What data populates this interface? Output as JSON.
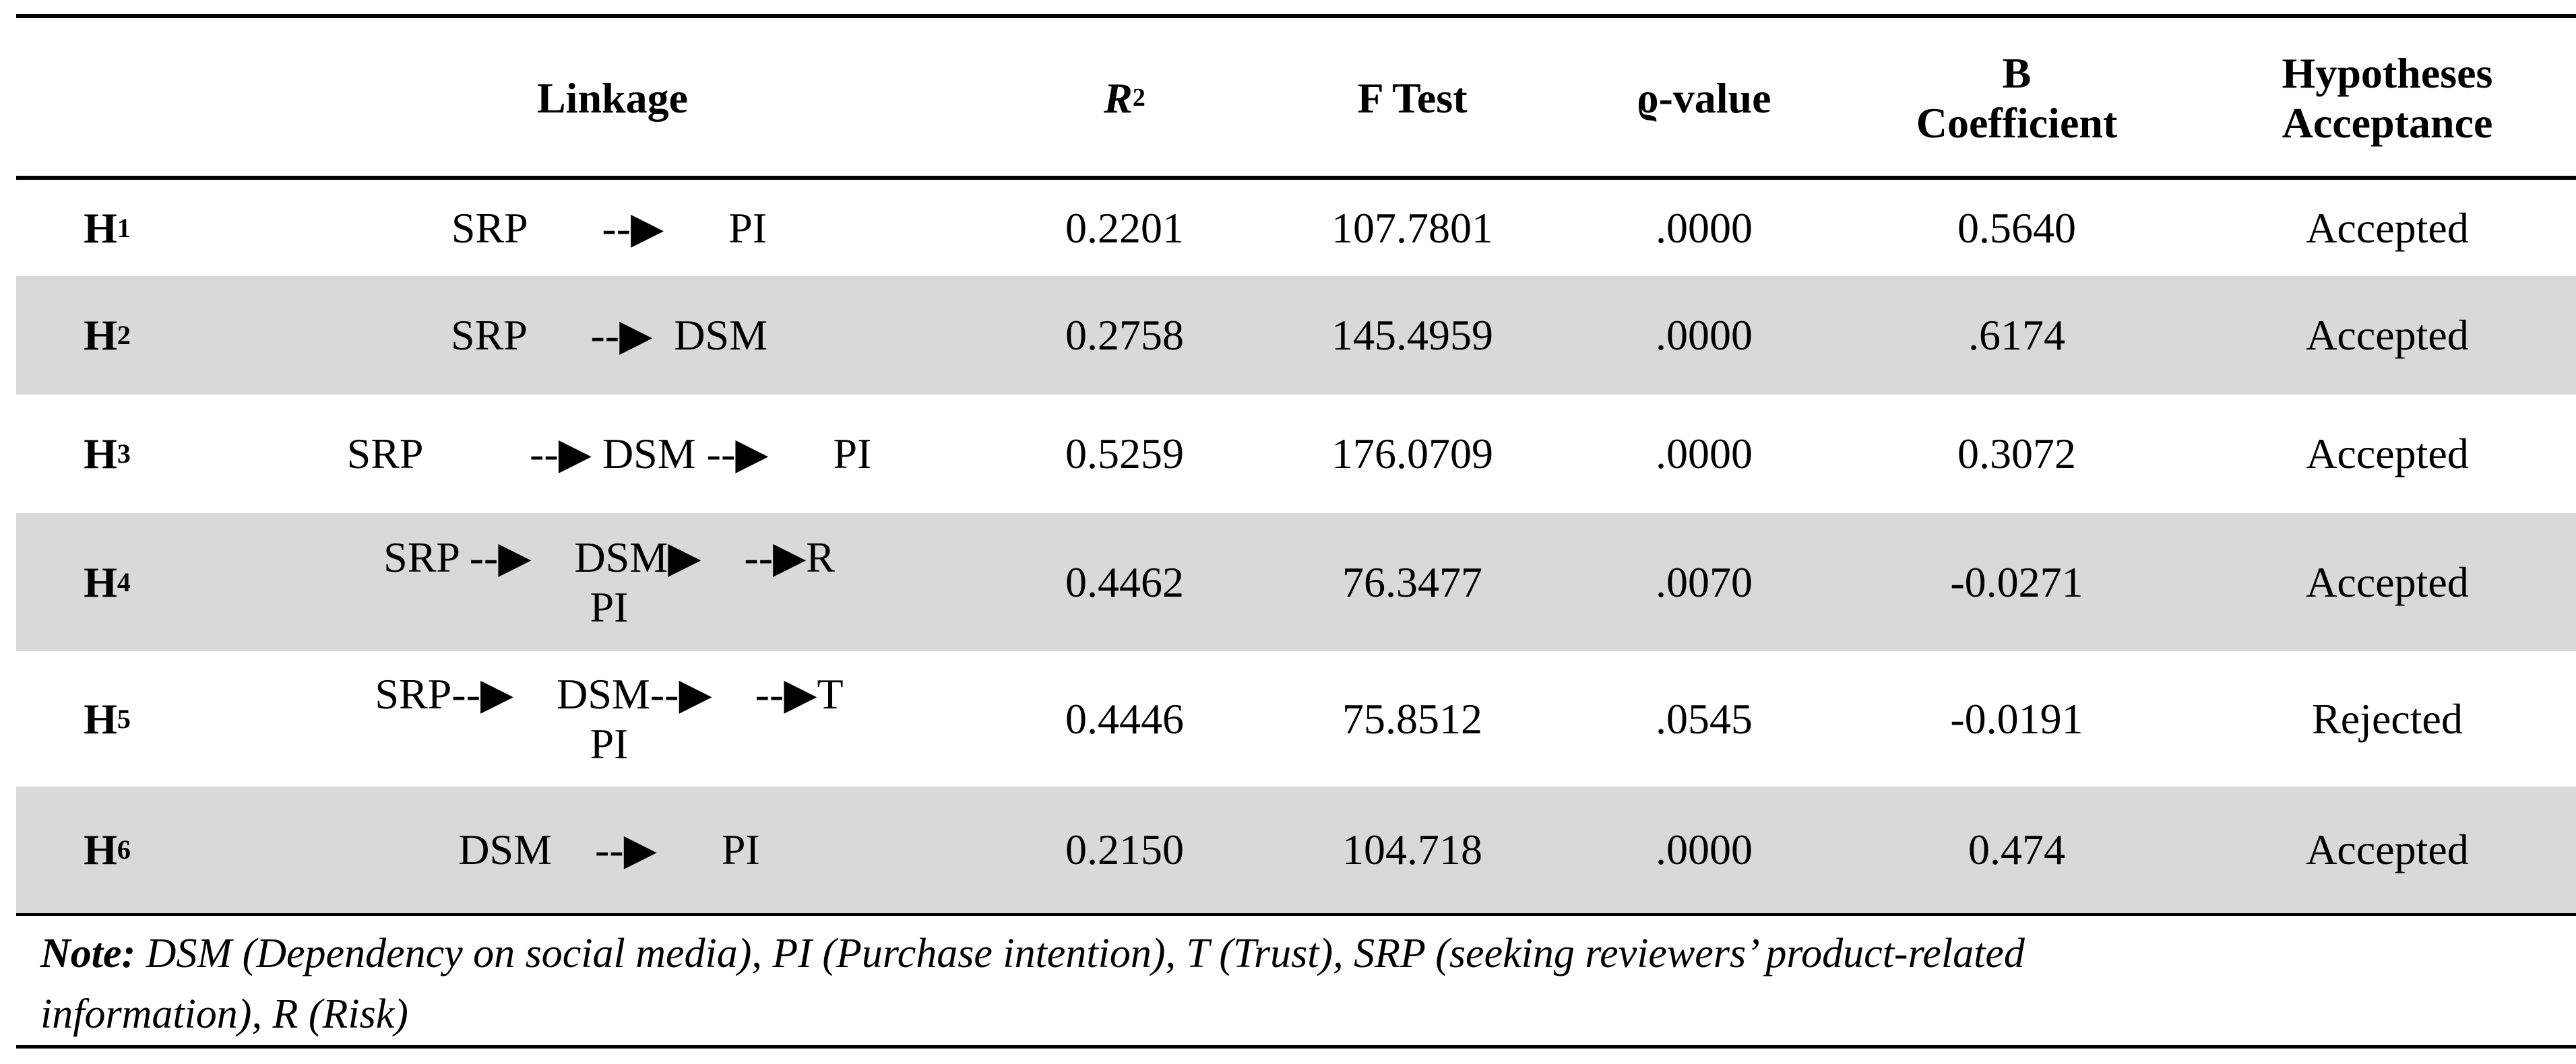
{
  "header": {
    "linkage": "Linkage",
    "r2": "R",
    "r2_sup": "2",
    "f_test": "F Test",
    "p_value": "ϱ-value",
    "b_coefficient": [
      "B",
      "Coefficient"
    ],
    "hypotheses_acceptance": [
      "Hypotheses",
      "Acceptance"
    ]
  },
  "rows": [
    {
      "h": "H",
      "sub": "1",
      "linkage": [
        "SRP       --▶      PI"
      ],
      "r2": "0.2201",
      "f": "107.7801",
      "p": ".0000",
      "b": "0.5640",
      "result": "Accepted"
    },
    {
      "h": "H",
      "sub": "2",
      "linkage": [
        "SRP      --▶  DSM"
      ],
      "r2": "0.2758",
      "f": "145.4959",
      "p": ".0000",
      "b": ".6174",
      "result": "Accepted"
    },
    {
      "h": "H",
      "sub": "3",
      "linkage": [
        "SRP          --▶ DSM --▶      PI"
      ],
      "r2": "0.5259",
      "f": "176.0709",
      "p": ".0000",
      "b": "0.3072",
      "result": "Accepted"
    },
    {
      "h": "H",
      "sub": "4",
      "linkage": [
        "SRP --▶    DSM▶    --▶R",
        "PI"
      ],
      "r2": "0.4462",
      "f": "76.3477",
      "p": ".0070",
      "b": "-0.0271",
      "result": "Accepted"
    },
    {
      "h": "H",
      "sub": "5",
      "linkage": [
        "SRP--▶    DSM--▶    --▶T",
        "PI"
      ],
      "r2": "0.4446",
      "f": "75.8512",
      "p": ".0545",
      "b": "-0.0191",
      "result": "Rejected"
    },
    {
      "h": "H",
      "sub": "6",
      "linkage": [
        "DSM    --▶      PI"
      ],
      "r2": "0.2150",
      "f": "104.718",
      "p": ".0000",
      "b": "0.474",
      "result": "Accepted"
    }
  ],
  "note": {
    "label": "Note:",
    "text": " DSM (Dependency on social media), PI (Purchase intention), T (Trust), SRP (seeking reviewers’ product-related information), R (Risk)"
  },
  "colors": {
    "shade": "#d9d9d9",
    "rule": "#000000"
  }
}
